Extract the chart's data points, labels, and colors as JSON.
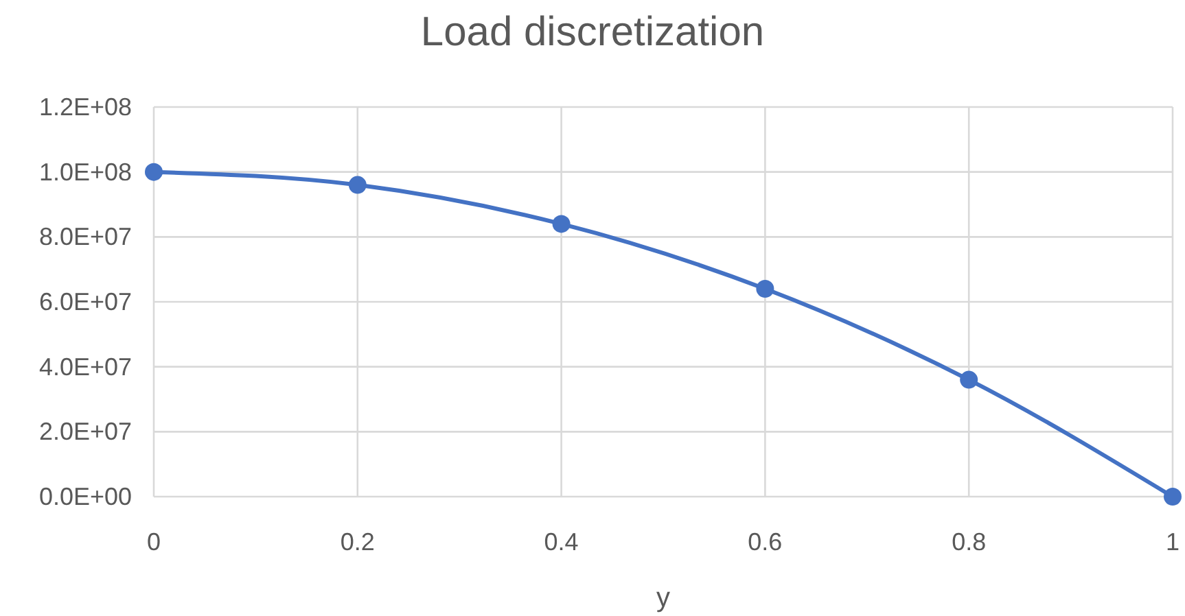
{
  "chart_data": {
    "type": "line",
    "title": "Load discretization",
    "xlabel": "y",
    "x": [
      0,
      0.2,
      0.4,
      0.6,
      0.8,
      1
    ],
    "series": [
      {
        "color": "#4472c4",
        "values": [
          100000000,
          96000000,
          84000000,
          64000000,
          36000000,
          0
        ]
      }
    ],
    "xlim": [
      0,
      1
    ],
    "xticks": [
      0,
      0.2,
      0.4,
      0.6,
      0.8,
      1
    ],
    "ylim": [
      0,
      120000000
    ],
    "yticks": [
      {
        "value": 0,
        "label": "0.0E+00"
      },
      {
        "value": 20000000,
        "label": "2.0E+07"
      },
      {
        "value": 40000000,
        "label": "4.0E+07"
      },
      {
        "value": 60000000,
        "label": "6.0E+07"
      },
      {
        "value": 80000000,
        "label": "8.0E+07"
      },
      {
        "value": 100000000,
        "label": "1.0E+08"
      },
      {
        "value": 120000000,
        "label": "1.2E+08"
      }
    ],
    "grid": true,
    "marker": "circle",
    "line_style": "solid"
  }
}
